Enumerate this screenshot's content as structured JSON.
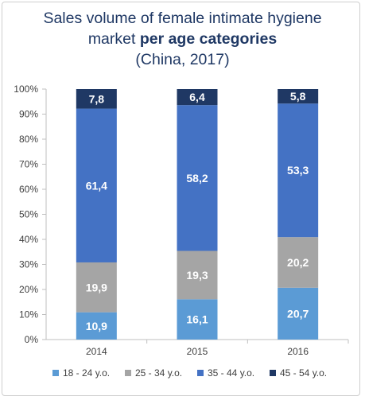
{
  "chart_data": {
    "type": "bar",
    "stacked": true,
    "title_line1": "Sales volume of female intimate hygiene",
    "title_line2_plain": "market ",
    "title_line2_bold": "per age categories",
    "title_line3": "(China, 2017)",
    "categories": [
      "2014",
      "2015",
      "2016"
    ],
    "y_ticks": [
      "0%",
      "10%",
      "20%",
      "30%",
      "40%",
      "50%",
      "60%",
      "70%",
      "80%",
      "90%",
      "100%"
    ],
    "ylim": [
      0,
      100
    ],
    "series": [
      {
        "name": "18 - 24 y.o.",
        "color": "#5b9bd5",
        "values": [
          10.9,
          16.1,
          20.7
        ],
        "labels": [
          "10,9",
          "16,1",
          "20,7"
        ]
      },
      {
        "name": "25 - 34 y.o.",
        "color": "#a5a5a5",
        "values": [
          19.9,
          19.3,
          20.2
        ],
        "labels": [
          "19,9",
          "19,3",
          "20,2"
        ]
      },
      {
        "name": "35 - 44 y.o.",
        "color": "#4472c4",
        "values": [
          61.4,
          58.2,
          53.3
        ],
        "labels": [
          "61,4",
          "58,2",
          "53,3"
        ]
      },
      {
        "name": "45 - 54 y.o.",
        "color": "#1f3864",
        "values": [
          7.8,
          6.4,
          5.8
        ],
        "labels": [
          "7,8",
          "6,4",
          "5,8"
        ]
      }
    ],
    "legend_position": "bottom",
    "grid": false
  }
}
